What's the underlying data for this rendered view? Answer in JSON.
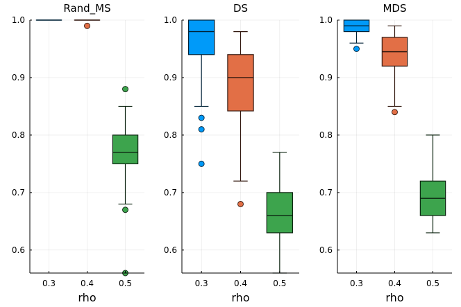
{
  "chart_data": [
    {
      "type": "box",
      "title": "Rand_MS",
      "xlabel": "rho",
      "ylabel": "",
      "categories": [
        "0.3",
        "0.4",
        "0.5"
      ],
      "ylim": [
        0.56,
        1.0
      ],
      "yticks": [
        "0.6",
        "0.7",
        "0.8",
        "0.9",
        "1.0"
      ],
      "grid": true,
      "series": [
        {
          "name": "0.3",
          "color": "#009af9",
          "min": 1.0,
          "q1": 1.0,
          "median": 1.0,
          "q3": 1.0,
          "max": 1.0,
          "outliers": []
        },
        {
          "name": "0.4",
          "color": "#e26f46",
          "min": 1.0,
          "q1": 1.0,
          "median": 1.0,
          "q3": 1.0,
          "max": 1.0,
          "outliers": [
            0.99
          ]
        },
        {
          "name": "0.5",
          "color": "#3da44d",
          "min": 0.68,
          "q1": 0.75,
          "median": 0.77,
          "q3": 0.8,
          "max": 0.85,
          "outliers": [
            0.88,
            0.67,
            0.56
          ]
        }
      ]
    },
    {
      "type": "box",
      "title": "DS",
      "xlabel": "rho",
      "ylabel": "",
      "categories": [
        "0.3",
        "0.4",
        "0.5"
      ],
      "ylim": [
        0.56,
        1.0
      ],
      "yticks": [
        "0.6",
        "0.7",
        "0.8",
        "0.9",
        "1.0"
      ],
      "grid": true,
      "series": [
        {
          "name": "0.3",
          "color": "#009af9",
          "min": 0.85,
          "q1": 0.94,
          "median": 0.98,
          "q3": 1.0,
          "max": 1.0,
          "outliers": [
            0.83,
            0.81,
            0.75
          ]
        },
        {
          "name": "0.4",
          "color": "#e26f46",
          "min": 0.72,
          "q1": 0.842,
          "median": 0.9,
          "q3": 0.94,
          "max": 0.98,
          "outliers": [
            0.68
          ]
        },
        {
          "name": "0.5",
          "color": "#3da44d",
          "min": 0.56,
          "q1": 0.63,
          "median": 0.66,
          "q3": 0.7,
          "max": 0.77,
          "outliers": []
        }
      ]
    },
    {
      "type": "box",
      "title": "MDS",
      "xlabel": "rho",
      "ylabel": "",
      "categories": [
        "0.3",
        "0.4",
        "0.5"
      ],
      "ylim": [
        0.56,
        1.0
      ],
      "yticks": [
        "0.6",
        "0.7",
        "0.8",
        "0.9",
        "1.0"
      ],
      "grid": true,
      "series": [
        {
          "name": "0.3",
          "color": "#009af9",
          "min": 0.96,
          "q1": 0.98,
          "median": 0.99,
          "q3": 1.0,
          "max": 1.0,
          "outliers": [
            0.95
          ]
        },
        {
          "name": "0.4",
          "color": "#e26f46",
          "min": 0.85,
          "q1": 0.92,
          "median": 0.945,
          "q3": 0.97,
          "max": 0.99,
          "outliers": [
            0.84
          ]
        },
        {
          "name": "0.5",
          "color": "#3da44d",
          "min": 0.63,
          "q1": 0.66,
          "median": 0.69,
          "q3": 0.72,
          "max": 0.8,
          "outliers": []
        }
      ]
    }
  ]
}
